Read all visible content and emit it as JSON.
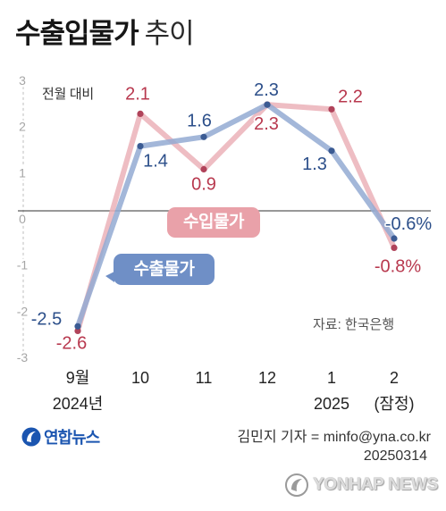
{
  "title": {
    "bold": "수출입물가",
    "light": "추이"
  },
  "colors": {
    "brand": "#1b55b0"
  },
  "chart_data": {
    "type": "line",
    "unit_label": "전월 대비",
    "categories": [
      "9월",
      "10",
      "11",
      "12",
      "1",
      "2"
    ],
    "category_sublabels": [
      "2024년",
      "",
      "",
      "",
      "2025",
      "(잠정)"
    ],
    "ylim": [
      -3,
      3
    ],
    "yticks": [
      3,
      2,
      1,
      0,
      -1,
      -2,
      -3
    ],
    "grid": false,
    "series": [
      {
        "name": "수출물가",
        "values": [
          -2.5,
          1.4,
          1.6,
          2.3,
          1.3,
          -0.6
        ],
        "labels": [
          "-2.5",
          "1.4",
          "1.6",
          "2.3",
          "1.3",
          "-0.6%"
        ],
        "label_color": "#2c4f8a",
        "line_color": "#93aad2",
        "point_color": "#3b5b93",
        "callout_color": "#6f8fc6"
      },
      {
        "name": "수입물가",
        "values": [
          -2.6,
          2.1,
          0.9,
          2.3,
          2.2,
          -0.8
        ],
        "labels": [
          "-2.6",
          "2.1",
          "0.9",
          "2.3",
          "2.2",
          "-0.8%"
        ],
        "label_color": "#b8384e",
        "line_color": "#ebb1b8",
        "point_color": "#b0435a",
        "callout_color": "#e9a1a9"
      }
    ],
    "source": "자료: 한국은행"
  },
  "footer": {
    "logo_text": "연합뉴스",
    "byline": "김민지 기자 = minfo@yna.co.kr",
    "date": "20250314",
    "watermark": "YONHAP NEWS"
  }
}
